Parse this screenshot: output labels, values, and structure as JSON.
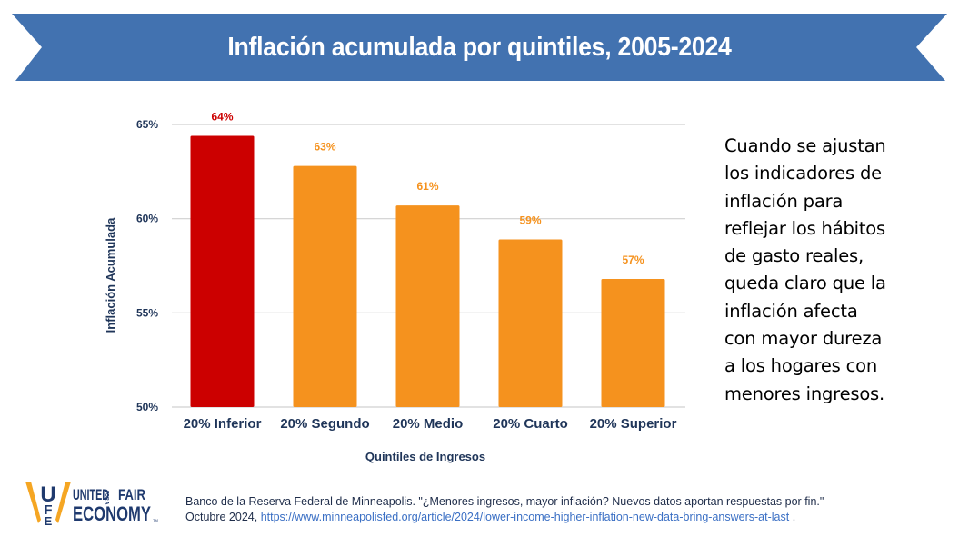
{
  "banner": {
    "title": "Inflación acumulada por quintiles, 2005-2024",
    "color": "#4272b0"
  },
  "chart_data": {
    "type": "bar",
    "title": "Inflación acumulada por quintiles, 2005-2024",
    "xlabel": "Quintiles de Ingresos",
    "ylabel": "Inflación Acumulada",
    "categories": [
      "20% Inferior",
      "20% Segundo",
      "20% Medio",
      "20% Cuarto",
      "20% Superior"
    ],
    "values": [
      64.4,
      62.8,
      60.7,
      58.9,
      56.8
    ],
    "data_labels": [
      "64%",
      "63%",
      "61%",
      "59%",
      "57%"
    ],
    "bar_colors": [
      "#cc0000",
      "#f5921e",
      "#f5921e",
      "#f5921e",
      "#f5921e"
    ],
    "label_colors": [
      "#cc0000",
      "#f5921e",
      "#f5921e",
      "#f5921e",
      "#f5921e"
    ],
    "ylim": [
      50,
      65
    ],
    "yticks": [
      50,
      55,
      60,
      65
    ],
    "ytick_labels": [
      "50%",
      "55%",
      "60%",
      "65%"
    ],
    "grid": true,
    "legend": "none"
  },
  "side_text": {
    "lines": [
      "Cuando se ajustan",
      "los indicadores de",
      "inflación para",
      "reflejar los hábitos",
      "de gasto reales,",
      "queda claro que la",
      "inflación afecta",
      "con mayor dureza",
      "a los hogares con",
      "menores ingresos."
    ]
  },
  "logo": {
    "letters": "UFE",
    "line1_left": "UNITED",
    "line1_small": "FOR A",
    "line1_right": "FAIR",
    "line2": "ECONOMY",
    "tm": "TM"
  },
  "source": {
    "line1": "Banco de la Reserva Federal de Minneapolis. \"¿Menores ingresos, mayor inflación? Nuevos datos aportan respuestas por fin.\"",
    "line2_prefix": "Octubre 2024, ",
    "link": "https://www.minneapolisfed.org/article/2024/lower-income-higher-inflation-new-data-bring-answers-at-last",
    "line2_suffix": " ."
  }
}
